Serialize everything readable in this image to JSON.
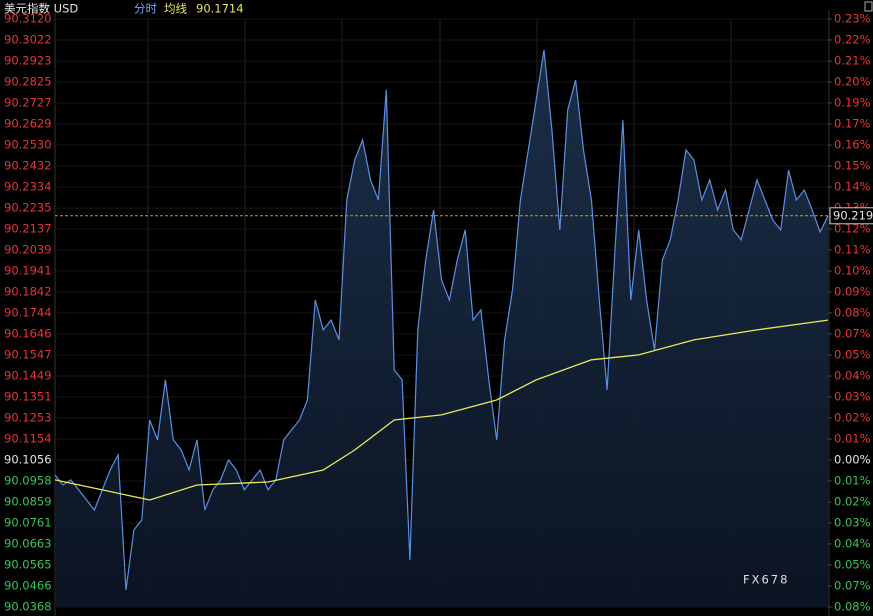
{
  "chart_data": {
    "type": "line",
    "title": "美元指数 USD",
    "mode_label": "分时",
    "avg_label": "均线",
    "avg_value": "90.1714",
    "watermark": "FX678",
    "series": [
      {
        "name": "price",
        "color": "#5b8fe0",
        "values": [
          90.0986,
          90.0939,
          90.0963,
          90.0916,
          90.0869,
          90.0822,
          90.0916,
          90.1009,
          90.108,
          90.0448,
          90.0729,
          90.0775,
          90.1243,
          90.115,
          90.1431,
          90.115,
          90.1103,
          90.1009,
          90.115,
          90.0822,
          90.0916,
          90.0963,
          90.1056,
          90.1009,
          90.0916,
          90.0963,
          90.1009,
          90.0916,
          90.0963,
          90.115,
          90.1197,
          90.1243,
          90.1337,
          90.1805,
          90.1665,
          90.1711,
          90.1618,
          90.2273,
          90.246,
          90.2554,
          90.2367,
          90.2273,
          90.2788,
          90.1477,
          90.1431,
          90.0588,
          90.1665,
          90.1992,
          90.2226,
          90.1899,
          90.1805,
          90.1992,
          90.2133,
          90.1711,
          90.1758,
          90.1431,
          90.115,
          90.1618,
          90.1852,
          90.2273,
          90.2507,
          90.2741,
          90.2975,
          90.2601,
          90.2133,
          90.2694,
          90.2835,
          90.2507,
          90.2273,
          90.1805,
          90.1384,
          90.2039,
          90.2647,
          90.1805,
          90.2133,
          90.1805,
          90.1571,
          90.1992,
          90.2086,
          90.2273,
          90.2507,
          90.246,
          90.2273,
          90.2367,
          90.2226,
          90.232,
          90.2133,
          90.2086,
          90.2226,
          90.2367,
          90.2273,
          90.2179,
          90.2133,
          90.2413,
          90.2273,
          90.232,
          90.2226,
          90.2123,
          90.2199
        ]
      },
      {
        "name": "average",
        "color": "#e8e85a",
        "x": [
          0,
          6,
          12,
          18,
          27,
          34,
          38,
          43,
          49,
          56,
          61,
          68,
          74,
          81,
          89,
          98
        ],
        "values": [
          90.0963,
          90.0916,
          90.0869,
          90.0939,
          90.0953,
          90.1009,
          90.1103,
          90.1243,
          90.1267,
          90.1337,
          90.1431,
          90.1525,
          90.1548,
          90.1618,
          90.1665,
          90.1711
        ]
      }
    ],
    "xlim": [
      0,
      98
    ],
    "ylim": [
      90.0368,
      90.312
    ],
    "yticks": [
      {
        "value": 90.312,
        "label": "90.3120"
      },
      {
        "value": 90.3022,
        "label": "90.3022"
      },
      {
        "value": 90.2923,
        "label": "90.2923"
      },
      {
        "value": 90.2825,
        "label": "90.2825"
      },
      {
        "value": 90.2727,
        "label": "90.2727"
      },
      {
        "value": 90.2629,
        "label": "90.2629"
      },
      {
        "value": 90.253,
        "label": "90.2530"
      },
      {
        "value": 90.2432,
        "label": "90.2432"
      },
      {
        "value": 90.2334,
        "label": "90.2334"
      },
      {
        "value": 90.2235,
        "label": "90.2235"
      },
      {
        "value": 90.2137,
        "label": "90.2137"
      },
      {
        "value": 90.2039,
        "label": "90.2039"
      },
      {
        "value": 90.1941,
        "label": "90.1941"
      },
      {
        "value": 90.1842,
        "label": "90.1842"
      },
      {
        "value": 90.1744,
        "label": "90.1744"
      },
      {
        "value": 90.1646,
        "label": "90.1646"
      },
      {
        "value": 90.1547,
        "label": "90.1547"
      },
      {
        "value": 90.1449,
        "label": "90.1449"
      },
      {
        "value": 90.1351,
        "label": "90.1351"
      },
      {
        "value": 90.1253,
        "label": "90.1253"
      },
      {
        "value": 90.1154,
        "label": "90.1154"
      },
      {
        "value": 90.1056,
        "label": "90.1056"
      },
      {
        "value": 90.0958,
        "label": "90.0958"
      },
      {
        "value": 90.0859,
        "label": "90.0859"
      },
      {
        "value": 90.0761,
        "label": "90.0761"
      },
      {
        "value": 90.0663,
        "label": "90.0663"
      },
      {
        "value": 90.0565,
        "label": "90.0565"
      },
      {
        "value": 90.0466,
        "label": "90.0466"
      },
      {
        "value": 90.0368,
        "label": "90.0368"
      }
    ],
    "y2lim": [
      -0.0764,
      0.2291
    ],
    "y2ticks": [
      {
        "value": 0.2291,
        "label": "0.23%"
      },
      {
        "value": 0.2182,
        "label": "0.22%"
      },
      {
        "value": 0.2072,
        "label": "0.21%"
      },
      {
        "value": 0.1963,
        "label": "0.20%"
      },
      {
        "value": 0.1855,
        "label": "0.19%"
      },
      {
        "value": 0.1746,
        "label": "0.17%"
      },
      {
        "value": 0.1636,
        "label": "0.16%"
      },
      {
        "value": 0.1527,
        "label": "0.15%"
      },
      {
        "value": 0.1418,
        "label": "0.14%"
      },
      {
        "value": 0.1308,
        "label": "0.13%"
      },
      {
        "value": 0.12,
        "label": "0.12%"
      },
      {
        "value": 0.1091,
        "label": "0.11%"
      },
      {
        "value": 0.0982,
        "label": "0.10%"
      },
      {
        "value": 0.0872,
        "label": "0.09%"
      },
      {
        "value": 0.0764,
        "label": "0.08%"
      },
      {
        "value": 0.0655,
        "label": "0.07%"
      },
      {
        "value": 0.0545,
        "label": "0.05%"
      },
      {
        "value": 0.0436,
        "label": "0.04%"
      },
      {
        "value": 0.0327,
        "label": "0.03%"
      },
      {
        "value": 0.0219,
        "label": "0.02%"
      },
      {
        "value": 0.0109,
        "label": "0.01%"
      },
      {
        "value": 0,
        "label": "0.00%"
      },
      {
        "value": -0.0109,
        "label": "0.01%"
      },
      {
        "value": -0.0219,
        "label": "0.02%"
      },
      {
        "value": -0.0327,
        "label": "0.03%"
      },
      {
        "value": -0.0436,
        "label": "0.04%"
      },
      {
        "value": -0.0545,
        "label": "0.05%"
      },
      {
        "value": -0.0655,
        "label": "0.07%"
      },
      {
        "value": -0.0764,
        "label": "0.08%"
      }
    ],
    "up_color": "#e8353a",
    "down_color": "#34c759",
    "flat_color": "#e6e6e6"
  }
}
